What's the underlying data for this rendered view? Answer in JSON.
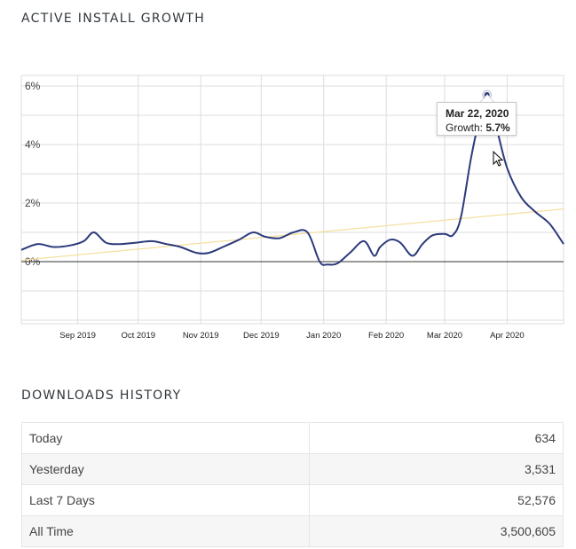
{
  "growth_section": {
    "title": "ACTIVE INSTALL GROWTH"
  },
  "chart_data": {
    "type": "line",
    "title": "",
    "xlabel": "",
    "ylabel": "",
    "ylim": [
      -2,
      6
    ],
    "y_ticks": [
      "6%",
      "4%",
      "2%",
      "0%"
    ],
    "y_tick_values": [
      6,
      4,
      2,
      0
    ],
    "x_ticks": [
      "Sep 2019",
      "Oct 2019",
      "Nov 2019",
      "Dec 2019",
      "Jan 2020",
      "Feb 2020",
      "Mar 2020",
      "Apr 2020"
    ],
    "x_tick_dates": [
      "2019-09-01",
      "2019-10-01",
      "2019-11-01",
      "2019-12-01",
      "2020-01-01",
      "2020-02-01",
      "2020-03-01",
      "2020-04-01"
    ],
    "x_range": [
      "2019-08-04",
      "2020-04-29"
    ],
    "grid": true,
    "line_color": "#2b3a7a",
    "trend_color": "#f5dfa0",
    "series": [
      {
        "x": [
          "2019-08-04",
          "2019-08-12",
          "2019-08-20",
          "2019-08-28",
          "2019-09-04",
          "2019-09-09",
          "2019-09-15",
          "2019-09-22",
          "2019-09-30",
          "2019-10-08",
          "2019-10-15",
          "2019-10-22",
          "2019-10-30",
          "2019-11-05",
          "2019-11-12",
          "2019-11-20",
          "2019-11-27",
          "2019-12-03",
          "2019-12-10",
          "2019-12-17",
          "2019-12-24",
          "2019-12-30",
          "2020-01-03",
          "2020-01-08",
          "2020-01-14",
          "2020-01-21",
          "2020-01-26",
          "2020-01-29",
          "2020-02-03",
          "2020-02-08",
          "2020-02-14",
          "2020-02-19",
          "2020-02-24",
          "2020-03-01",
          "2020-03-05",
          "2020-03-09",
          "2020-03-14",
          "2020-03-18",
          "2020-03-22",
          "2020-03-27",
          "2020-04-01",
          "2020-04-08",
          "2020-04-15",
          "2020-04-22",
          "2020-04-29"
        ],
        "y": [
          0.4,
          0.6,
          0.5,
          0.55,
          0.7,
          1.0,
          0.65,
          0.6,
          0.65,
          0.7,
          0.6,
          0.5,
          0.3,
          0.3,
          0.5,
          0.75,
          1.0,
          0.85,
          0.8,
          1.0,
          1.0,
          0.0,
          -0.1,
          -0.05,
          0.3,
          0.7,
          0.2,
          0.5,
          0.75,
          0.65,
          0.2,
          0.6,
          0.9,
          0.95,
          0.9,
          1.5,
          3.5,
          4.8,
          5.7,
          4.5,
          3.2,
          2.2,
          1.7,
          1.3,
          0.6
        ]
      }
    ],
    "trend_line": {
      "x": [
        "2019-08-04",
        "2020-04-29"
      ],
      "y": [
        0.05,
        1.8
      ]
    },
    "highlight": {
      "x": "2020-03-22",
      "y": 5.7
    }
  },
  "tooltip": {
    "date": "Mar 22, 2020",
    "label": "Growth:",
    "value": "5.7%"
  },
  "downloads_section": {
    "title": "DOWNLOADS HISTORY",
    "rows": [
      {
        "label": "Today",
        "value": "634"
      },
      {
        "label": "Yesterday",
        "value": "3,531"
      },
      {
        "label": "Last 7 Days",
        "value": "52,576"
      },
      {
        "label": "All Time",
        "value": "3,500,605"
      }
    ]
  }
}
